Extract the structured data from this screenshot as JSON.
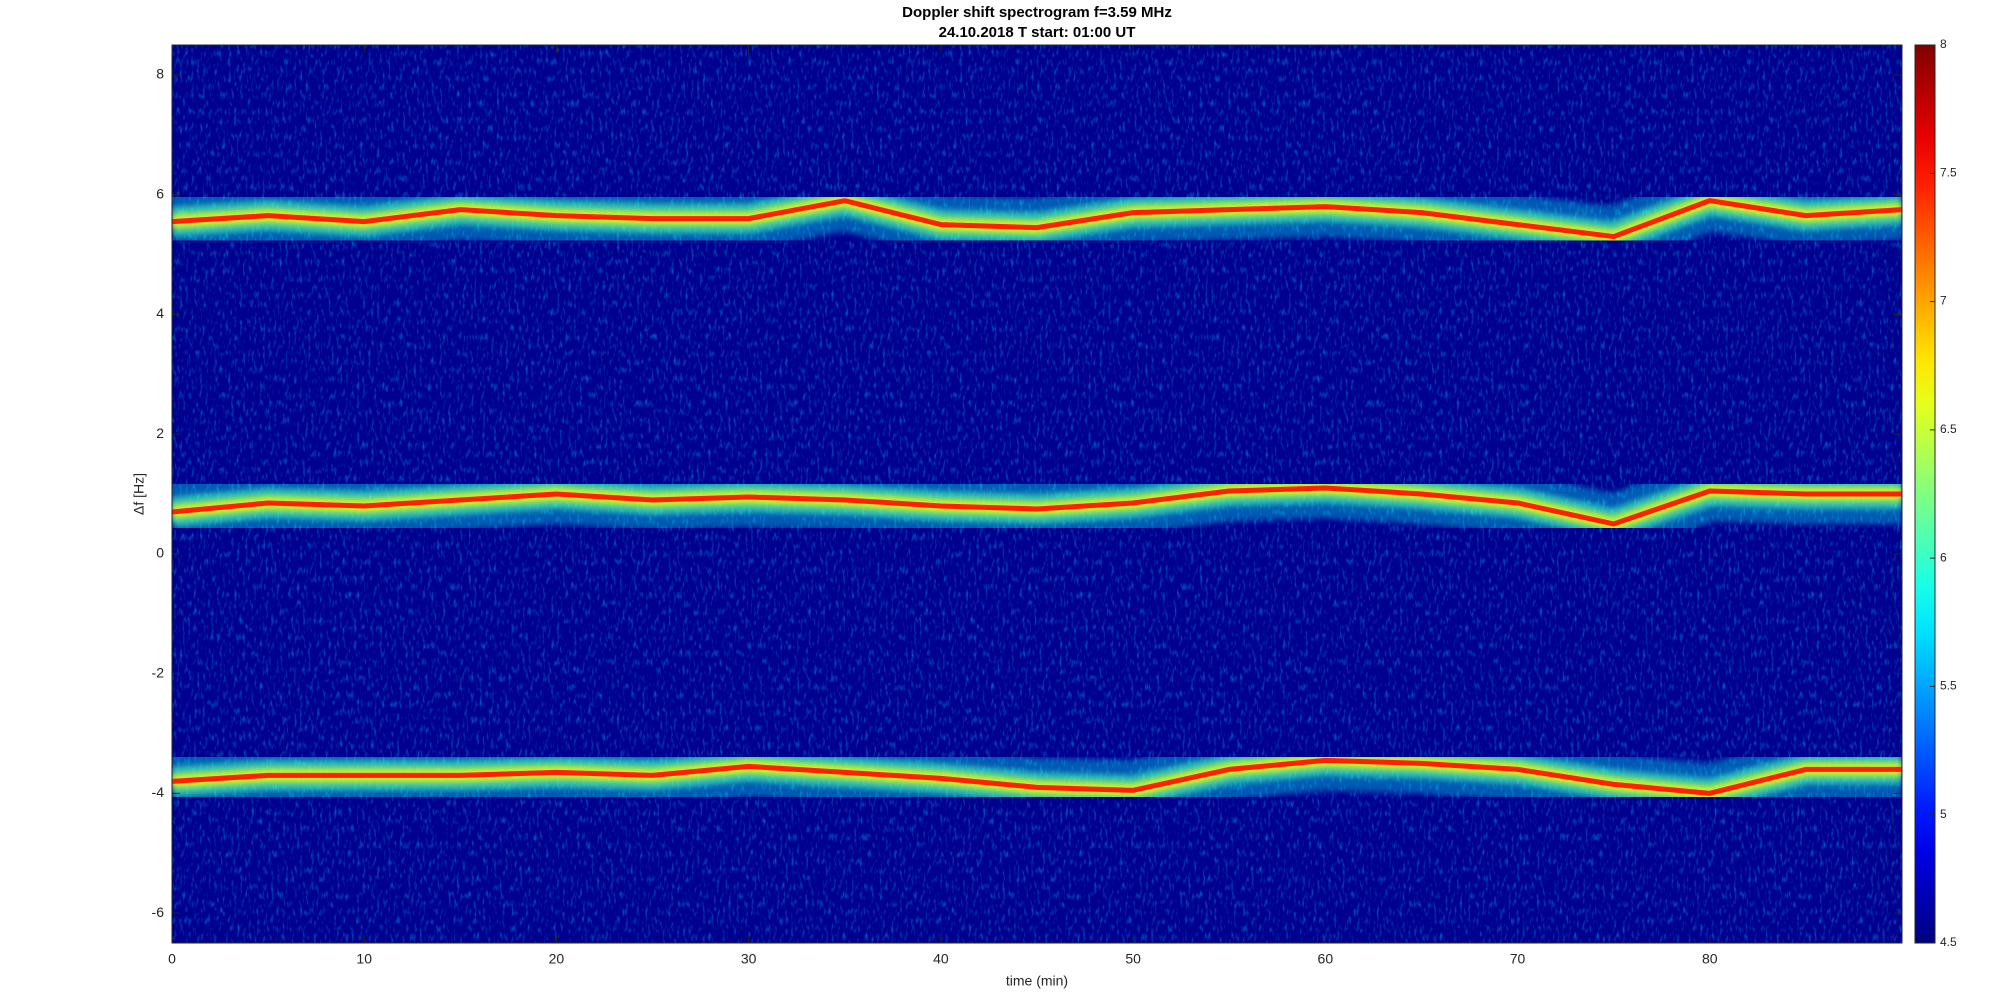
{
  "chart_data": {
    "type": "spectrogram",
    "title": "Doppler shift spectrogram f=3.59 MHz",
    "subtitle": "24.10.2018   T start: 01:00 UT",
    "x_label": "time (min)",
    "y_label": "Δf [Hz]",
    "xlim": [
      0,
      90
    ],
    "xticks": [
      0,
      10,
      20,
      30,
      40,
      50,
      60,
      70,
      80
    ],
    "ylim": [
      -6.5,
      8.5
    ],
    "yticks": [
      -6,
      -4,
      -2,
      0,
      2,
      4,
      6,
      8
    ],
    "x": [
      0,
      5,
      10,
      15,
      20,
      25,
      30,
      35,
      40,
      45,
      50,
      55,
      60,
      65,
      70,
      75,
      80,
      85,
      90
    ],
    "series": [
      {
        "color": "#ff2000",
        "values": [
          5.55,
          5.65,
          5.55,
          5.75,
          5.65,
          5.6,
          5.6,
          5.9,
          5.5,
          5.45,
          5.7,
          5.75,
          5.8,
          5.7,
          5.5,
          5.3,
          5.9,
          5.65,
          5.75
        ]
      },
      {
        "color": "#ff2000",
        "values": [
          0.7,
          0.85,
          0.8,
          0.9,
          1.0,
          0.9,
          0.95,
          0.9,
          0.8,
          0.75,
          0.85,
          1.05,
          1.1,
          1.0,
          0.85,
          0.5,
          1.05,
          1.0,
          1.0
        ]
      },
      {
        "color": "#ff2000",
        "values": [
          -3.8,
          -3.7,
          -3.7,
          -3.7,
          -3.65,
          -3.7,
          -3.55,
          -3.65,
          -3.75,
          -3.9,
          -3.95,
          -3.6,
          -3.45,
          -3.5,
          -3.6,
          -3.85,
          -4.0,
          -3.6,
          -3.6
        ]
      }
    ],
    "colormap": "jet",
    "clim": [
      4.5,
      8
    ],
    "cticks": [
      4.5,
      5,
      5.5,
      6,
      6.5,
      7,
      7.5,
      8
    ]
  }
}
